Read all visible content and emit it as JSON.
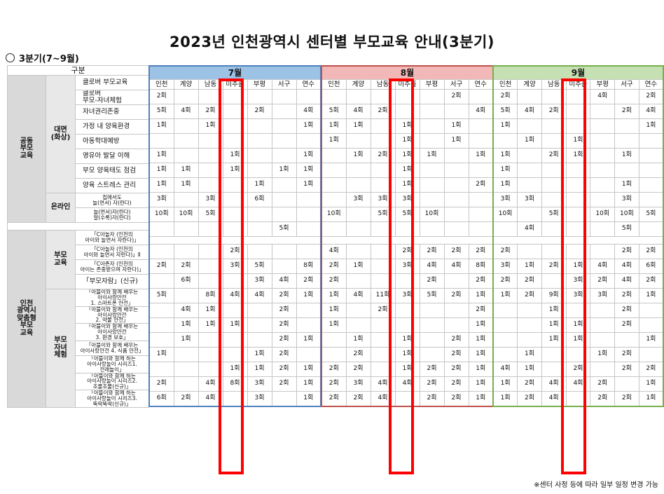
{
  "title": "2023년 인천광역시 센터별 부모교육 안내(3분기)",
  "subtitle": "3분기(7~9월)",
  "footnote": "※센터 사정 등에 따라 일부 일정 변경 가능",
  "header_label": "구분",
  "regions": [
    "인천",
    "계양",
    "남동",
    "미추홀",
    "부평",
    "서구",
    "연수"
  ],
  "groups": {
    "common": "공동\n부모\n교육",
    "inperson": "대면\n(화상)",
    "online": "온라인",
    "custom": "인천\n광역시\n맞춤형\n부모\n교육",
    "parent": "부모\n교육",
    "parentchild": "부모\n자녀\n체험"
  },
  "months": [
    {
      "name": "7월",
      "rows": [
        [
          "2회",
          "",
          "",
          "",
          "",
          "",
          ""
        ],
        [
          "5회",
          "4회",
          "2회",
          "",
          "2회",
          "",
          "4회"
        ],
        [
          "1회",
          "",
          "1회",
          "",
          "",
          "",
          "1회"
        ],
        [
          "",
          "",
          "",
          "",
          "",
          "",
          ""
        ],
        [
          "1회",
          "",
          "",
          "1회",
          "",
          "",
          "1회"
        ],
        [
          "1회",
          "1회",
          "",
          "1회",
          "",
          "1회",
          "1회"
        ],
        [
          "1회",
          "1회",
          "",
          "",
          "1회",
          "",
          "1회"
        ],
        [
          "3회",
          "",
          "3회",
          "",
          "6회",
          "",
          ""
        ],
        [
          "10회",
          "10회",
          "5회",
          "",
          "",
          "",
          ""
        ],
        [
          "",
          "",
          "",
          "",
          "",
          "5회",
          ""
        ],
        [
          "",
          "",
          "",
          "2회",
          "",
          "",
          ""
        ],
        [
          "2회",
          "2회",
          "",
          "3회",
          "5회",
          "",
          "8회"
        ],
        [
          "",
          "6회",
          "",
          "",
          "3회",
          "4회",
          "2회"
        ],
        [
          "5회",
          "",
          "8회",
          "4회",
          "4회",
          "2회",
          "1회"
        ],
        [
          "",
          "4회",
          "1회",
          "",
          "",
          "2회",
          ""
        ],
        [
          "",
          "1회",
          "1회",
          "1회",
          "",
          "2회",
          ""
        ],
        [
          "",
          "1회",
          "",
          "",
          "",
          "2회",
          "1회"
        ],
        [
          "1회",
          "",
          "",
          "",
          "1회",
          "2회",
          ""
        ],
        [
          "",
          "",
          "",
          "1회",
          "1회",
          "2회",
          "1회"
        ],
        [
          "2회",
          "",
          "4회",
          "8회",
          "3회",
          "2회",
          "1회"
        ],
        [
          "6회",
          "2회",
          "4회",
          "",
          "3회",
          "",
          "1회"
        ]
      ]
    },
    {
      "name": "8월",
      "rows": [
        [
          "",
          "",
          "",
          "",
          "",
          "2회",
          ""
        ],
        [
          "5회",
          "4회",
          "2회",
          "",
          "",
          "",
          "4회"
        ],
        [
          "1회",
          "1회",
          "",
          "1회",
          "",
          "1회",
          ""
        ],
        [
          "1회",
          "",
          "",
          "1회",
          "",
          "1회",
          ""
        ],
        [
          "",
          "1회",
          "2회",
          "1회",
          "1회",
          "",
          "1회"
        ],
        [
          "",
          "",
          "",
          "1회",
          "",
          "",
          ""
        ],
        [
          "",
          "",
          "",
          "1회",
          "",
          "",
          "2회"
        ],
        [
          "",
          "3회",
          "3회",
          "3회",
          "",
          "",
          ""
        ],
        [
          "10회",
          "",
          "5회",
          "5회",
          "10회",
          "",
          ""
        ],
        [
          "",
          "",
          "",
          "",
          "",
          "",
          ""
        ],
        [
          "4회",
          "",
          "",
          "2회",
          "2회",
          "2회",
          "2회"
        ],
        [
          "2회",
          "1회",
          "",
          "3회",
          "4회",
          "4회",
          "8회"
        ],
        [
          "2회",
          "",
          "",
          "",
          "2회",
          "",
          "2회"
        ],
        [
          "1회",
          "4회",
          "11회",
          "3회",
          "5회",
          "2회",
          "1회"
        ],
        [
          "1회",
          "",
          "2회",
          "",
          "",
          "",
          "2회"
        ],
        [
          "1회",
          "",
          "",
          "",
          "",
          "",
          "1회"
        ],
        [
          "",
          "1회",
          "",
          "1회",
          "",
          "2회",
          "1회"
        ],
        [
          "",
          "2회",
          "",
          "1회",
          "",
          "2회",
          "1회"
        ],
        [
          "2회",
          "2회",
          "",
          "1회",
          "2회",
          "2회",
          "1회"
        ],
        [
          "2회",
          "3회",
          "4회",
          "4회",
          "2회",
          "2회",
          "1회"
        ],
        [
          "2회",
          "2회",
          "4회",
          "",
          "2회",
          "2회",
          "1회"
        ]
      ]
    },
    {
      "name": "9월",
      "rows": [
        [
          "2회",
          "",
          "",
          "",
          "4회",
          "",
          "2회"
        ],
        [
          "5회",
          "4회",
          "2회",
          "",
          "",
          "2회",
          "4회"
        ],
        [
          "1회",
          "",
          "",
          "",
          "",
          "",
          "1회"
        ],
        [
          "",
          "1회",
          "",
          "1회",
          "",
          "",
          ""
        ],
        [
          "1회",
          "",
          "2회",
          "1회",
          "",
          "1회",
          ""
        ],
        [
          "1회",
          "",
          "",
          "",
          "",
          "",
          ""
        ],
        [
          "1회",
          "",
          "",
          "",
          "",
          "1회",
          ""
        ],
        [
          "3회",
          "3회",
          "",
          "",
          "",
          "3회",
          ""
        ],
        [
          "10회",
          "",
          "5회",
          "",
          "10회",
          "10회",
          "5회"
        ],
        [
          "",
          "4회",
          "",
          "",
          "",
          "5회",
          ""
        ],
        [
          "2회",
          "",
          "",
          "",
          "",
          "2회",
          "2회"
        ],
        [
          "3회",
          "1회",
          "2회",
          "1회",
          "4회",
          "4회",
          "6회"
        ],
        [
          "2회",
          "2회",
          "",
          "3회",
          "2회",
          "4회",
          "2회"
        ],
        [
          "1회",
          "2회",
          "9회",
          "3회",
          "3회",
          "2회",
          "1회"
        ],
        [
          "",
          "",
          "1회",
          "",
          "",
          "2회",
          ""
        ],
        [
          "",
          "",
          "1회",
          "1회",
          "",
          "2회",
          ""
        ],
        [
          "",
          "",
          "1회",
          "1회",
          "",
          "",
          "1회"
        ],
        [
          "",
          "1회",
          "",
          "",
          "1회",
          "2회",
          ""
        ],
        [
          "4회",
          "1회",
          "",
          "2회",
          "",
          "2회",
          "2회"
        ],
        [
          "1회",
          "2회",
          "4회",
          "4회",
          "2회",
          "",
          "1회"
        ],
        [
          "1회",
          "2회",
          "4회",
          "",
          "2회",
          "2회",
          "1회"
        ]
      ]
    }
  ],
  "programs": [
    {
      "label": "클로버 부모교육",
      "multi": false
    },
    {
      "label": "클로버\n부모-자녀체험",
      "multi": false
    },
    {
      "label": "자녀권리존중",
      "multi": false
    },
    {
      "label": "가정 내 양육환경",
      "multi": false
    },
    {
      "label": "아동학대예방",
      "multi": false
    },
    {
      "label": "영유아 발달 이해",
      "multi": false
    },
    {
      "label": "부모 양육태도 점검",
      "multi": false
    },
    {
      "label": "양육 스트레스 관리",
      "multi": false
    },
    {
      "label": "집에서도\n놀(면서) 자(란다)",
      "multi": true
    },
    {
      "label": "놀(면서)자(란다)\n알(수록)자(란다)",
      "multi": true
    },
    {
      "label": "「C아놀자 (인천의\n아이와 놀면서 자란다)」",
      "multi": true
    },
    {
      "label": "「C아놀자 (인천의\n아이와 놀면서 자란다)」Ⅱ",
      "multi": true
    },
    {
      "label": "「C아존자 (인천의\n아이는 존중받으며 자란다)」",
      "multi": true
    },
    {
      "label": "「부모자람」(신규)",
      "multi": false
    },
    {
      "label": "「아뜰이와 함께 배우는\n아이사랑안전\n1. 스마트폰 안전」",
      "multi": true
    },
    {
      "label": "「아뜰이와 함께 배우는\n아이사랑안전\n2. 약물 안전」",
      "multi": true
    },
    {
      "label": "「아뜰이와 함께 배우는\n아이사랑안전\n3. 환경 보호」",
      "multi": true
    },
    {
      "label": "「아뜰이와 함께 배우는\n아이사랑안전 4. 식품 안전」",
      "multi": true
    },
    {
      "label": "「아뜰이와 함께 하는\n아이사랑놀이 시리즈1.\n전래놀이」",
      "multi": true
    },
    {
      "label": "「아뜰이와 함께 하는\n아이사랑놀이 시리즈2.\n조물조물(신규)」",
      "multi": true
    },
    {
      "label": "「아뜰이와 함께 하는\n아이사랑놀이 시리즈3.\n뚝딱뚝딱(신규)」",
      "multi": true
    }
  ]
}
